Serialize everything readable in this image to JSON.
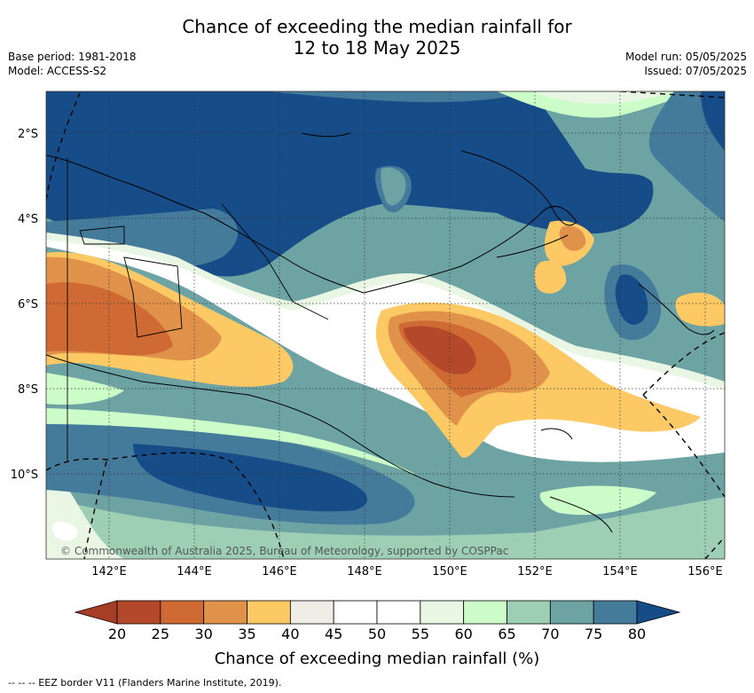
{
  "header": {
    "title_line1": "Chance of exceeding the median rainfall for",
    "title_line2": "12 to 18 May 2025",
    "base_period": "Base period: 1981-2018",
    "model": "Model: ACCESS-S2",
    "model_run": "Model run: 05/05/2025",
    "issued": "Issued: 07/05/2025"
  },
  "map": {
    "lat_labels": [
      "2°S",
      "4°S",
      "6°S",
      "8°S",
      "10°S"
    ],
    "lon_labels": [
      "142°E",
      "144°E",
      "146°E",
      "148°E",
      "150°E",
      "152°E",
      "154°E",
      "156°E"
    ],
    "copyright": "© Commonwealth of Australia 2025, Bureau of Meteorology, supported by COSPPac"
  },
  "legend": {
    "ticks": [
      "20",
      "25",
      "30",
      "35",
      "40",
      "45",
      "50",
      "55",
      "60",
      "65",
      "70",
      "75",
      "80"
    ],
    "colors": [
      "#b3492a",
      "#cf6a35",
      "#e1924a",
      "#fdc965",
      "#f0ede6",
      "#ffffff",
      "#ffffff",
      "#eaf6e4",
      "#ccfcc8",
      "#9ecfb5",
      "#6ea3a4",
      "#447a9a"
    ],
    "low_color": "#a63d26",
    "high_color": "#164c88",
    "label": "Chance of exceeding median rainfall (%)"
  },
  "footnote": "-- --  -- EEZ border V11 (Flanders Marine Institute, 2019)."
}
